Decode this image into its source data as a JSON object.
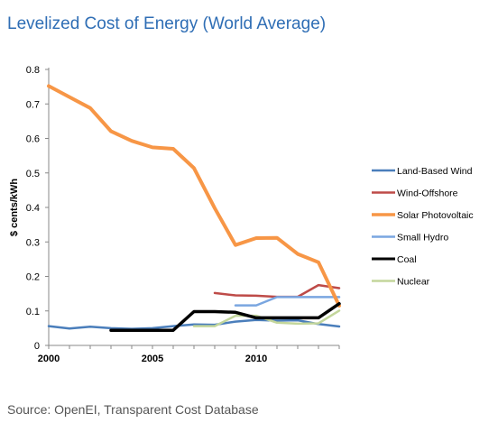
{
  "title": "Levelized Cost of Energy (World Average)",
  "source": "Source: OpenEI, Transparent Cost Database",
  "chart_data": {
    "type": "line",
    "title": "Levelized Cost of Energy (World Average)",
    "xlabel": "",
    "ylabel": "$ cents/kWh",
    "xlim": [
      2000,
      2014
    ],
    "ylim": [
      0,
      0.8
    ],
    "x_ticks": [
      2000,
      2005,
      2010
    ],
    "x_tick_labels": [
      "2000",
      "2005",
      "2010"
    ],
    "y_ticks": [
      0,
      0.1,
      0.2,
      0.3,
      0.4,
      0.5,
      0.6,
      0.7,
      0.8
    ],
    "y_tick_labels": [
      "0",
      "0.1",
      "0.2",
      "0.3",
      "0.4",
      "0.5",
      "0.6",
      "0.7",
      "0.8"
    ],
    "grid": false,
    "legend_position": "right",
    "series": [
      {
        "name": "Land-Based Wind",
        "color": "#4a7ebb",
        "width": 2.5,
        "points": [
          [
            2000,
            0.056
          ],
          [
            2001,
            0.049
          ],
          [
            2002,
            0.054
          ],
          [
            2003,
            0.05
          ],
          [
            2004,
            0.048
          ],
          [
            2005,
            0.05
          ],
          [
            2006,
            0.056
          ],
          [
            2007,
            0.061
          ],
          [
            2008,
            0.06
          ],
          [
            2009,
            0.069
          ],
          [
            2010,
            0.074
          ],
          [
            2011,
            0.072
          ],
          [
            2012,
            0.073
          ],
          [
            2013,
            0.062
          ],
          [
            2014,
            0.055
          ]
        ]
      },
      {
        "name": "Wind-Offshore",
        "color": "#be4b48",
        "width": 2.5,
        "points": [
          [
            2008,
            0.152
          ],
          [
            2009,
            0.145
          ],
          [
            2010,
            0.144
          ],
          [
            2011,
            0.141
          ],
          [
            2012,
            0.141
          ],
          [
            2013,
            0.175
          ],
          [
            2014,
            0.166
          ]
        ]
      },
      {
        "name": "Solar Photovoltaic",
        "color": "#f79646",
        "width": 4,
        "points": [
          [
            2000,
            0.752
          ],
          [
            2001,
            0.72
          ],
          [
            2002,
            0.688
          ],
          [
            2003,
            0.621
          ],
          [
            2004,
            0.593
          ],
          [
            2005,
            0.574
          ],
          [
            2006,
            0.57
          ],
          [
            2007,
            0.514
          ],
          [
            2008,
            0.398
          ],
          [
            2009,
            0.291
          ],
          [
            2010,
            0.311
          ],
          [
            2011,
            0.312
          ],
          [
            2012,
            0.265
          ],
          [
            2013,
            0.241
          ],
          [
            2014,
            0.115
          ]
        ]
      },
      {
        "name": "Small Hydro",
        "color": "#7aa6e0",
        "width": 2.5,
        "points": [
          [
            2009,
            0.116
          ],
          [
            2010,
            0.116
          ],
          [
            2011,
            0.14
          ],
          [
            2012,
            0.14
          ],
          [
            2013,
            0.14
          ],
          [
            2014,
            0.14
          ]
        ]
      },
      {
        "name": "Coal",
        "color": "#000000",
        "width": 3.5,
        "points": [
          [
            2003,
            0.044
          ],
          [
            2004,
            0.044
          ],
          [
            2005,
            0.044
          ],
          [
            2006,
            0.044
          ],
          [
            2007,
            0.098
          ],
          [
            2008,
            0.098
          ],
          [
            2009,
            0.096
          ],
          [
            2010,
            0.08
          ],
          [
            2011,
            0.08
          ],
          [
            2012,
            0.08
          ],
          [
            2013,
            0.08
          ],
          [
            2014,
            0.121
          ]
        ]
      },
      {
        "name": "Nuclear",
        "color": "#c3d69b",
        "width": 2.5,
        "points": [
          [
            2007,
            0.056
          ],
          [
            2008,
            0.056
          ],
          [
            2009,
            0.086
          ],
          [
            2010,
            0.086
          ],
          [
            2011,
            0.066
          ],
          [
            2012,
            0.063
          ],
          [
            2013,
            0.064
          ],
          [
            2014,
            0.101
          ]
        ]
      }
    ]
  }
}
